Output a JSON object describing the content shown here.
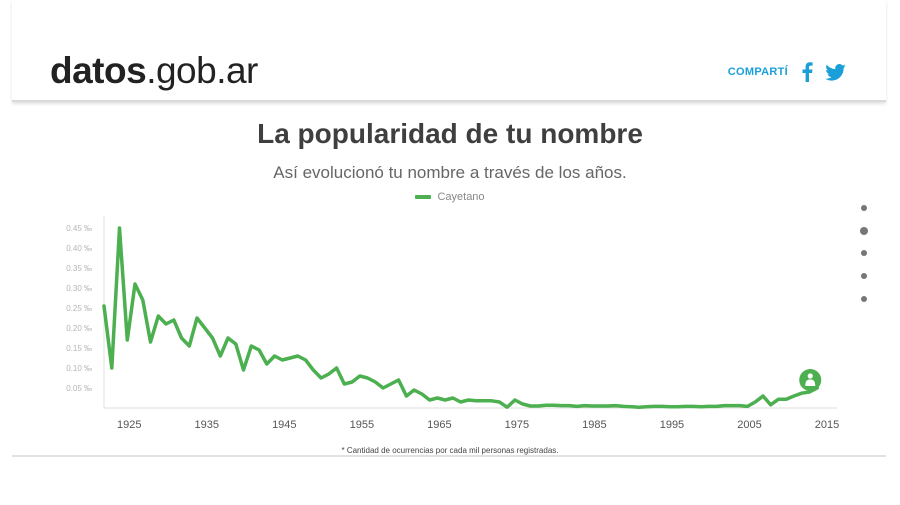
{
  "header": {
    "logo_bold": "datos",
    "logo_rest": ".gob.ar",
    "share_label": "COMPARTÍ",
    "facebook_icon": "facebook-icon",
    "twitter_icon": "twitter-icon"
  },
  "colors": {
    "accent": "#1a9fd9",
    "series": "#4caf50"
  },
  "nav": {
    "dots": 5,
    "active_index": 1
  },
  "footnote": "* Cantidad de ocurrencias por cada mil personas registradas.",
  "chart_data": {
    "type": "line",
    "title": "La popularidad de tu nombre",
    "subtitle": "Así evolucionó tu nombre a través de los años.",
    "legend_position": "top-center",
    "grid": false,
    "xlabel": "",
    "ylabel": "",
    "x_ticks": [
      1925,
      1935,
      1945,
      1955,
      1965,
      1975,
      1985,
      1995,
      2005,
      2015
    ],
    "y_ticks": [
      0.05,
      0.1,
      0.15,
      0.2,
      0.25,
      0.3,
      0.35,
      0.4,
      0.45
    ],
    "y_tick_labels": [
      "0.05 ‰",
      "0.10 ‰",
      "0.15 ‰",
      "0.20 ‰",
      "0.25 ‰",
      "0.30 ‰",
      "0.35 ‰",
      "0.40 ‰",
      "0.45 ‰"
    ],
    "xlim": [
      1922,
      2015
    ],
    "ylim": [
      0,
      0.47
    ],
    "end_marker_icon": "baby-icon",
    "series": [
      {
        "name": "Cayetano",
        "x": [
          1922,
          1923,
          1924,
          1925,
          1926,
          1927,
          1928,
          1929,
          1930,
          1931,
          1932,
          1933,
          1934,
          1935,
          1936,
          1937,
          1938,
          1939,
          1940,
          1941,
          1942,
          1943,
          1944,
          1945,
          1946,
          1947,
          1948,
          1949,
          1950,
          1951,
          1952,
          1953,
          1954,
          1955,
          1956,
          1957,
          1958,
          1959,
          1960,
          1961,
          1962,
          1963,
          1964,
          1965,
          1966,
          1967,
          1968,
          1969,
          1970,
          1971,
          1972,
          1973,
          1974,
          1975,
          1976,
          1977,
          1978,
          1979,
          1980,
          1981,
          1982,
          1983,
          1984,
          1985,
          1986,
          1987,
          1988,
          1989,
          1990,
          1991,
          1992,
          1993,
          1994,
          1995,
          1996,
          1997,
          1998,
          1999,
          2000,
          2001,
          2002,
          2003,
          2004,
          2005,
          2006,
          2007,
          2008,
          2009,
          2010,
          2011,
          2012,
          2013,
          2014
        ],
        "y": [
          0.255,
          0.1,
          0.45,
          0.17,
          0.31,
          0.27,
          0.165,
          0.23,
          0.21,
          0.22,
          0.175,
          0.155,
          0.225,
          0.2,
          0.175,
          0.13,
          0.175,
          0.16,
          0.095,
          0.155,
          0.145,
          0.11,
          0.13,
          0.12,
          0.125,
          0.13,
          0.12,
          0.095,
          0.075,
          0.085,
          0.1,
          0.06,
          0.065,
          0.08,
          0.075,
          0.065,
          0.05,
          0.06,
          0.07,
          0.03,
          0.045,
          0.035,
          0.02,
          0.025,
          0.02,
          0.025,
          0.015,
          0.02,
          0.018,
          0.018,
          0.018,
          0.015,
          0.002,
          0.02,
          0.01,
          0.005,
          0.005,
          0.007,
          0.007,
          0.006,
          0.006,
          0.004,
          0.006,
          0.005,
          0.005,
          0.005,
          0.006,
          0.004,
          0.003,
          0.002,
          0.003,
          0.004,
          0.004,
          0.003,
          0.003,
          0.004,
          0.004,
          0.003,
          0.004,
          0.004,
          0.006,
          0.006,
          0.006,
          0.004,
          0.015,
          0.03,
          0.008,
          0.022,
          0.022,
          0.03,
          0.037,
          0.04,
          0.05
        ]
      }
    ]
  }
}
